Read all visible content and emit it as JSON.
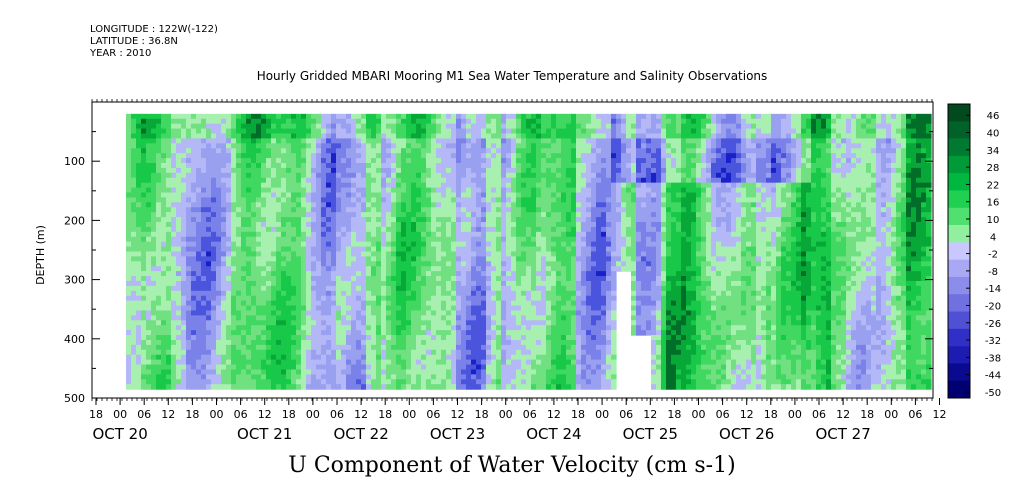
{
  "header": {
    "longitude": "LONGITUDE : 122W(-122)",
    "latitude": "LATITUDE : 36.8N",
    "year": "YEAR : 2010"
  },
  "chart_data": {
    "type": "heatmap",
    "title": "Hourly Gridded MBARI Mooring M1 Sea Water Temperature and Salinity Observations",
    "xlabel": "U Component of Water Velocity (cm s-1)",
    "ylabel": "DEPTH (m)",
    "y_ticks": [
      "100",
      "200",
      "300",
      "400",
      "500"
    ],
    "y_tick_values": [
      100,
      200,
      300,
      400,
      500
    ],
    "ylim": [
      0,
      500
    ],
    "y_inverted": true,
    "data_depth_range": [
      20,
      485
    ],
    "hour_ticks": [
      "18",
      "00",
      "06",
      "12",
      "18",
      "00",
      "06",
      "12",
      "18",
      "00",
      "06",
      "12",
      "18",
      "00",
      "06",
      "12",
      "18",
      "00",
      "06",
      "12",
      "18",
      "00",
      "06",
      "12",
      "18",
      "00",
      "06",
      "12",
      "18",
      "00",
      "06",
      "12",
      "18",
      "00",
      "06",
      "12"
    ],
    "date_labels": [
      "OCT 20",
      "OCT 21",
      "OCT 22",
      "OCT 23",
      "OCT 24",
      "OCT 25",
      "OCT 26",
      "OCT 27"
    ],
    "colorbar_levels": [
      "46",
      "40",
      "34",
      "28",
      "22",
      "16",
      "10",
      "4",
      "-2",
      "-8",
      "-14",
      "-20",
      "-26",
      "-32",
      "-38",
      "-44",
      "-50"
    ],
    "colorbar_colors": [
      "#004a1e",
      "#006228",
      "#007a30",
      "#009a38",
      "#00b840",
      "#20d050",
      "#50e070",
      "#90f0a0",
      "#c8c8ff",
      "#a8a8f4",
      "#8c8cea",
      "#7070e0",
      "#5050d4",
      "#3030c8",
      "#1c1cb0",
      "#0a0a90",
      "#000070"
    ],
    "notes_colors": {
      "positive": "#28d048",
      "negative": "#9aa0f0"
    }
  }
}
